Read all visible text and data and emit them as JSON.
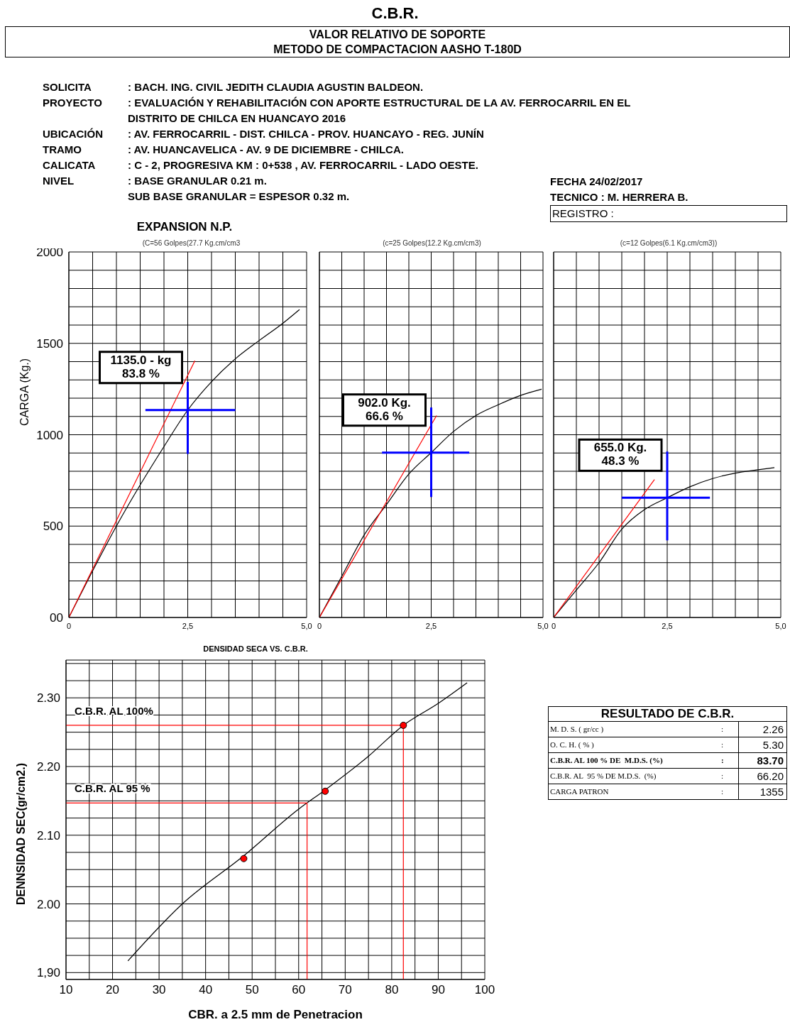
{
  "chart_data": [
    {
      "type": "other",
      "title": "C.B.R.",
      "subtitle": "VALOR RELATIVO DE SOPORTE",
      "annotations": [
        "METODO DE COMPACTACION AASHO T-180D",
        "SOLICITA",
        ": BACH. ING. CIVIL  JEDITH CLAUDIA AGUSTIN BALDEON.",
        "PROYECTO",
        ": EVALUACIÓN Y REHABILITACIÓN CON APORTE ESTRUCTURAL DE LA AV. FERROCARRIL EN EL\nDISTRITO DE CHILCA EN HUANCAYO 2016",
        "UBICACIÓN",
        ": AV. FERROCARRIL - DIST. CHILCA - PROV. HUANCAYO - REG. JUNÍN",
        "TRAMO",
        ":  AV. HUANCAVELICA - AV. 9 DE DICIEMBRE  - CHILCA.",
        "CALICATA",
        ": C - 2, PROGRESIVA  KM : 0+538 , AV. FERROCARRIL - LADO OESTE.",
        "NIVEL",
        ": BASE GRANULAR 0.21  m.\nSUB BASE GRANULAR  = ESPESOR  0.32 m.",
        "FECHA 24/02/2017",
        "TECNICO : M. HERRERA B.",
        "REGISTRO :"
      ]
    },
    {
      "type": "line",
      "title": "EXPANSION  N.P.",
      "subtitle": "(C=56 Golpes(27.7 Kg.cm/cm3",
      "ylabel": "CARGA (Kg.)",
      "xlim": [
        0,
        5
      ],
      "ylim": [
        0,
        2000
      ],
      "grid": true,
      "xticks": [
        0,
        {
          "value": 0.5,
          "label": null
        },
        {
          "value": 1,
          "label": null
        },
        {
          "value": 1.5,
          "label": null
        },
        {
          "value": 2,
          "label": null
        },
        {
          "value": 2.5,
          "label": "2,5"
        },
        {
          "value": 3,
          "label": null
        },
        {
          "value": 3.5,
          "label": null
        },
        {
          "value": 4,
          "label": null
        },
        {
          "value": 4.5,
          "label": null
        },
        {
          "value": 5,
          "label": "5,0"
        }
      ],
      "yticks": [
        {
          "value": 0,
          "label": "00"
        },
        {
          "value": 100,
          "label": null
        },
        {
          "value": 200,
          "label": null
        },
        {
          "value": 300,
          "label": null
        },
        {
          "value": 400,
          "label": null
        },
        500,
        {
          "value": 600,
          "label": null
        },
        {
          "value": 700,
          "label": null
        },
        {
          "value": 800,
          "label": null
        },
        {
          "value": 900,
          "label": null
        },
        1000,
        {
          "value": 1100,
          "label": null
        },
        {
          "value": 1200,
          "label": null
        },
        {
          "value": 1300,
          "label": null
        },
        {
          "value": 1400,
          "label": null
        },
        1500,
        {
          "value": 1600,
          "label": null
        },
        {
          "value": 1700,
          "label": null
        },
        {
          "value": 1800,
          "label": null
        },
        {
          "value": 1900,
          "label": null
        },
        2000
      ],
      "series": [
        {
          "color": "#000000",
          "x": [
            0,
            0.5,
            1,
            1.5,
            2,
            2.5,
            3,
            3.5,
            4,
            4.5,
            4.85
          ],
          "values": [
            0,
            255,
            500,
            725,
            935,
            1135,
            1290,
            1415,
            1515,
            1610,
            1685
          ]
        },
        {
          "color": "#ff0000",
          "x": [
            0,
            2.65
          ],
          "values": [
            0,
            1405
          ]
        },
        {
          "color": "#0000ff",
          "x": [
            1.61,
            3.5
          ],
          "values": [
            1135,
            1135
          ]
        },
        {
          "color": "#0000ff",
          "x": [
            2.5,
            2.5
          ],
          "values": [
            895,
            1289
          ]
        }
      ],
      "annotations": [
        "1135.0 - kg\n83.8 %"
      ]
    },
    {
      "type": "line",
      "subtitle": "(c=25 Golpes(12.2 Kg.cm/cm3)",
      "xlim": [
        0,
        5
      ],
      "ylim": [
        0,
        2000
      ],
      "grid": true,
      "tick_labels": "x",
      "xticks": [
        0,
        {
          "value": 0.5,
          "label": null
        },
        {
          "value": 1,
          "label": null
        },
        {
          "value": 1.5,
          "label": null
        },
        {
          "value": 2,
          "label": null
        },
        {
          "value": 2.5,
          "label": "2,5"
        },
        {
          "value": 3,
          "label": null
        },
        {
          "value": 3.5,
          "label": null
        },
        {
          "value": 4,
          "label": null
        },
        {
          "value": 4.5,
          "label": null
        },
        {
          "value": 5,
          "label": "5,0"
        }
      ],
      "yticks": [
        0,
        100,
        200,
        300,
        400,
        500,
        600,
        700,
        800,
        900,
        1000,
        1100,
        1200,
        1300,
        1400,
        1500,
        1600,
        1700,
        1800,
        1900,
        2000
      ],
      "series": [
        {
          "color": "#000000",
          "x": [
            0,
            0.5,
            1,
            1.5,
            2,
            2.5,
            3,
            3.5,
            4,
            4.5,
            4.97
          ],
          "values": [
            0,
            225,
            451,
            618,
            785,
            902,
            1018,
            1105,
            1164,
            1215,
            1249
          ]
        },
        {
          "color": "#ff0000",
          "x": [
            0,
            2.62
          ],
          "values": [
            0,
            1105
          ]
        },
        {
          "color": "#0000ff",
          "x": [
            1.4,
            3.35
          ],
          "values": [
            902,
            902
          ]
        },
        {
          "color": "#0000ff",
          "x": [
            2.5,
            2.5
          ],
          "values": [
            659,
            1149
          ]
        }
      ],
      "annotations": [
        "902.0  Kg.\n66.6 %"
      ]
    },
    {
      "type": "line",
      "subtitle": "(c=12 Golpes(6.1 Kg.cm/cm3))",
      "xlim": [
        0,
        5
      ],
      "ylim": [
        0,
        2000
      ],
      "grid": true,
      "tick_labels": "x",
      "xticks": [
        0,
        {
          "value": 0.5,
          "label": null
        },
        {
          "value": 1,
          "label": null
        },
        {
          "value": 1.5,
          "label": null
        },
        {
          "value": 2,
          "label": null
        },
        {
          "value": 2.5,
          "label": "2,5"
        },
        {
          "value": 3,
          "label": null
        },
        {
          "value": 3.5,
          "label": null
        },
        {
          "value": 4,
          "label": null
        },
        {
          "value": 4.5,
          "label": null
        },
        {
          "value": 5,
          "label": "5,0"
        }
      ],
      "yticks": [
        0,
        100,
        200,
        300,
        400,
        500,
        600,
        700,
        800,
        900,
        1000,
        1100,
        1200,
        1300,
        1400,
        1500,
        1600,
        1700,
        1800,
        1900,
        2000
      ],
      "series": [
        {
          "color": "#000000",
          "x": [
            0,
            0.5,
            1,
            1.5,
            2,
            2.5,
            3,
            3.5,
            4,
            4.5,
            4.86
          ],
          "values": [
            0,
            150,
            300,
            483,
            590,
            655,
            715,
            760,
            790,
            808,
            820
          ]
        },
        {
          "color": "#ff0000",
          "x": [
            0,
            2.22
          ],
          "values": [
            0,
            755
          ]
        },
        {
          "color": "#0000ff",
          "x": [
            1.5,
            3.44
          ],
          "values": [
            655,
            655
          ]
        },
        {
          "color": "#0000ff",
          "x": [
            2.5,
            2.5
          ],
          "values": [
            422,
            908
          ]
        }
      ],
      "annotations": [
        "655.0 Kg.\n48.3 %"
      ]
    },
    {
      "type": "line",
      "title": "DENSIDAD SECA  VS.    C.B.R.",
      "xlabel": "CBR. a 2.5 mm de Penetracion",
      "ylabel": "DENNSIDAD SEC(gr/cm2.)",
      "xlim": [
        10,
        100
      ],
      "ylim": [
        1.89,
        2.355
      ],
      "grid": true,
      "xticks": [
        10,
        {
          "value": 15,
          "label": null
        },
        20,
        {
          "value": 25,
          "label": null
        },
        30,
        {
          "value": 35,
          "label": null
        },
        40,
        {
          "value": 45,
          "label": null
        },
        50,
        {
          "value": 55,
          "label": null
        },
        60,
        {
          "value": 65,
          "label": null
        },
        70,
        {
          "value": 75,
          "label": null
        },
        80,
        {
          "value": 85,
          "label": null
        },
        90,
        {
          "value": 95,
          "label": null
        },
        100
      ],
      "yticks": [
        {
          "value": 1.9,
          "label": "1,90"
        },
        {
          "value": 1.925,
          "label": null
        },
        {
          "value": 1.95,
          "label": null
        },
        {
          "value": 1.975,
          "label": null
        },
        {
          "value": 2,
          "label": "2.00"
        },
        {
          "value": 2.025,
          "label": null
        },
        {
          "value": 2.05,
          "label": null
        },
        {
          "value": 2.075,
          "label": null
        },
        {
          "value": 2.1,
          "label": "2.10"
        },
        {
          "value": 2.125,
          "label": null
        },
        {
          "value": 2.15,
          "label": null
        },
        {
          "value": 2.175,
          "label": null
        },
        {
          "value": 2.2,
          "label": "2.20"
        },
        {
          "value": 2.225,
          "label": null
        },
        {
          "value": 2.25,
          "label": null
        },
        {
          "value": 2.275,
          "label": null
        },
        {
          "value": 2.3,
          "label": "2.30"
        },
        {
          "value": 2.325,
          "label": null
        },
        {
          "value": 2.35,
          "label": null
        }
      ],
      "series": [
        {
          "color": "#000000",
          "x": [
            23.3,
            35,
            48.2,
            60,
            65.7,
            75,
            82.5,
            90,
            96.2
          ],
          "values": [
            1.917,
            2.0,
            2.07,
            2.138,
            2.166,
            2.215,
            2.26,
            2.292,
            2.322
          ]
        },
        {
          "color": "#ff0000",
          "x": [
            10,
            82.5
          ],
          "values": [
            2.26,
            2.26
          ]
        },
        {
          "color": "#ff0000",
          "x": [
            82.5,
            82.5
          ],
          "values": [
            1.89,
            2.26
          ]
        },
        {
          "color": "#ff0000",
          "x": [
            10,
            61.8
          ],
          "values": [
            2.147,
            2.147
          ]
        },
        {
          "color": "#ff0000",
          "x": [
            61.8,
            61.8
          ],
          "values": [
            1.89,
            2.147
          ]
        },
        {
          "type": "scatter",
          "marker": "circle",
          "color": "#ff0000",
          "x": [
            48.2,
            65.7,
            82.5
          ],
          "values": [
            2.066,
            2.164,
            2.26
          ]
        }
      ],
      "annotations": [
        {
          "text": "C.B.R. AL  100%",
          "x": 10,
          "y": 2.26
        },
        {
          "text": "C.B.R. AL  95 %",
          "x": 10,
          "y": 2.147
        }
      ]
    },
    {
      "type": "other",
      "title": "RESULTADO DE C.B.R.",
      "categories": [
        "M. D. S. ( gr/cc )",
        "O. C. H. ( % )",
        "C.B.R. AL 100 % DE  M.D.S. (%)",
        "C.B.R. AL  95 % DE M.D.S.  (%)",
        "CARGA PATRON"
      ],
      "annotations": [
        ":",
        ":",
        ":",
        ":",
        ":"
      ],
      "value_labels": [
        "2.26",
        "5.30",
        "83.70",
        "66.20",
        "1355"
      ]
    }
  ]
}
